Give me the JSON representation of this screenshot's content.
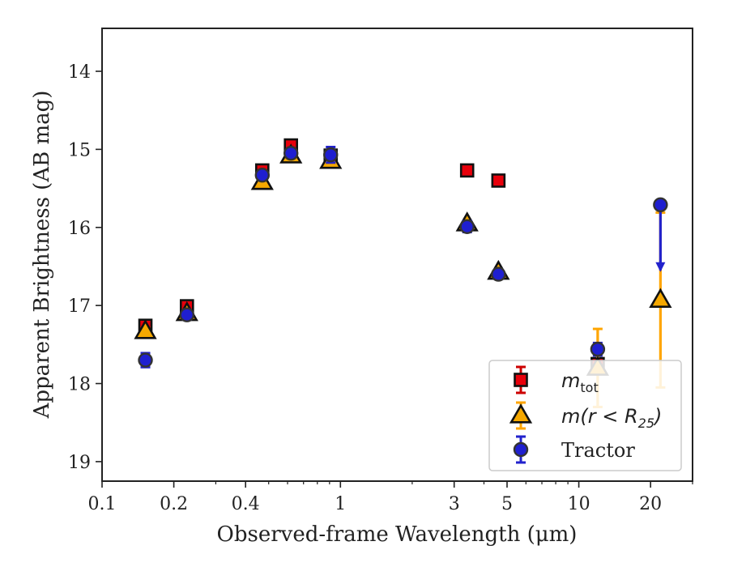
{
  "chart_data": {
    "type": "scatter",
    "xlabel": "Observed-frame Wavelength (μm)",
    "ylabel": "Apparent Brightness (AB mag)",
    "xscale": "log",
    "xlim": [
      0.1,
      30
    ],
    "ylim": [
      19.25,
      13.45
    ],
    "y_inverted": true,
    "xticks": [
      {
        "value": 0.1,
        "label": "0.1"
      },
      {
        "value": 0.2,
        "label": "0.2"
      },
      {
        "value": 0.4,
        "label": "0.4"
      },
      {
        "value": 1,
        "label": "1"
      },
      {
        "value": 3,
        "label": "3"
      },
      {
        "value": 5,
        "label": "5"
      },
      {
        "value": 10,
        "label": "10"
      },
      {
        "value": 20,
        "label": "20"
      }
    ],
    "yticks": [
      {
        "value": 14,
        "label": "14"
      },
      {
        "value": 15,
        "label": "15"
      },
      {
        "value": 16,
        "label": "16"
      },
      {
        "value": 17,
        "label": "17"
      },
      {
        "value": 18,
        "label": "18"
      },
      {
        "value": 19,
        "label": "19"
      }
    ],
    "legend_position": "lower-right",
    "series": [
      {
        "name": "m_tot",
        "marker": "square",
        "color": "#e8000b",
        "errcolor": "#cc0000",
        "points": [
          {
            "x": 0.152,
            "y": 17.26,
            "err": 0.06
          },
          {
            "x": 0.227,
            "y": 17.01,
            "err": 0.07
          },
          {
            "x": 0.47,
            "y": 15.27,
            "err": 0.05
          },
          {
            "x": 0.62,
            "y": 14.95,
            "err": 0.06
          },
          {
            "x": 0.91,
            "y": 15.08,
            "err": 0.05
          },
          {
            "x": 3.4,
            "y": 15.27,
            "err": 0.06
          },
          {
            "x": 4.6,
            "y": 15.4,
            "err": 0.07
          },
          {
            "x": 12.0,
            "y": 17.75,
            "err": 0.06
          }
        ]
      },
      {
        "name": "m(r<R25)",
        "marker": "triangle",
        "color": "#f5a800",
        "errcolor": "#ffa500",
        "points": [
          {
            "x": 0.152,
            "y": 17.33,
            "err": 0.04
          },
          {
            "x": 0.227,
            "y": 17.1,
            "err": 0.04
          },
          {
            "x": 0.47,
            "y": 15.42,
            "err": 0.03
          },
          {
            "x": 0.62,
            "y": 15.08,
            "err": 0.03
          },
          {
            "x": 0.91,
            "y": 15.15,
            "err": 0.03
          },
          {
            "x": 3.4,
            "y": 15.95,
            "err": 0.03
          },
          {
            "x": 4.6,
            "y": 16.57,
            "err": 0.03
          },
          {
            "x": 12.0,
            "y": 17.8,
            "err": 0.5
          },
          {
            "x": 22.0,
            "y": 16.93,
            "err": 1.12
          }
        ]
      },
      {
        "name": "Tractor",
        "marker": "circle",
        "color": "#1f1fd0",
        "errcolor": "#2222cc",
        "points": [
          {
            "x": 0.152,
            "y": 17.7,
            "err": 0.09
          },
          {
            "x": 0.227,
            "y": 17.12,
            "err": 0.06
          },
          {
            "x": 0.47,
            "y": 15.33,
            "err": 0.05
          },
          {
            "x": 0.62,
            "y": 15.05,
            "err": 0.05
          },
          {
            "x": 0.91,
            "y": 15.07,
            "err": 0.1
          },
          {
            "x": 3.4,
            "y": 15.99,
            "err": 0.07
          },
          {
            "x": 4.6,
            "y": 16.6,
            "err": 0.06
          },
          {
            "x": 12.0,
            "y": 17.56,
            "err": 0.08
          },
          {
            "x": 22.0,
            "y": 15.71,
            "err": 0,
            "upper_limit_arrow_to": 16.55
          }
        ]
      }
    ],
    "legend": [
      {
        "label_main": "m",
        "label_sub": "tot",
        "label_rest": "",
        "series": 0
      },
      {
        "label_main": "m(r < R",
        "label_sub": "25",
        "label_rest": ")",
        "series": 1
      },
      {
        "label_main": "Tractor",
        "label_sub": "",
        "label_rest": "",
        "series": 2
      }
    ]
  }
}
